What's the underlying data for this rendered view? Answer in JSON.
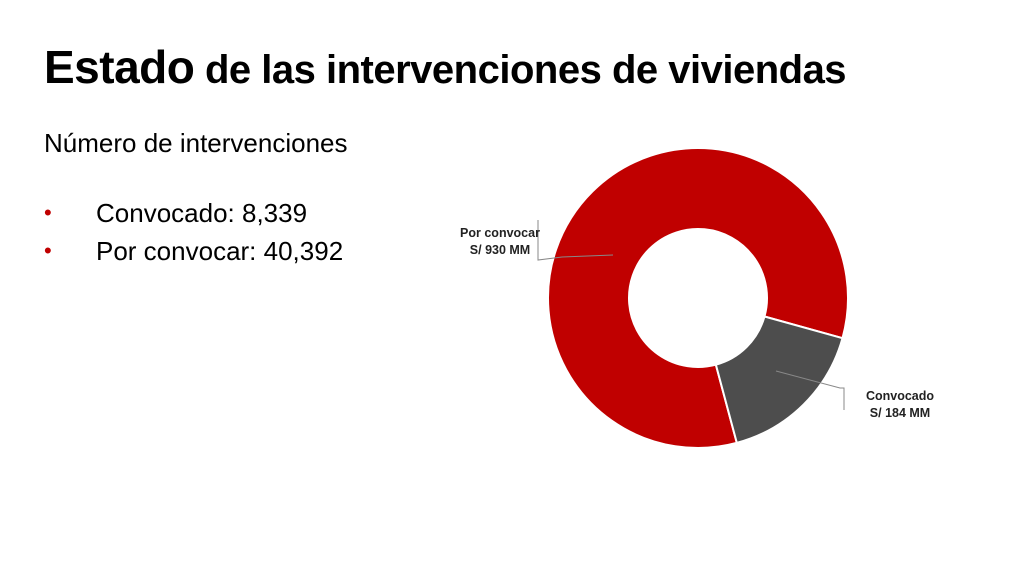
{
  "title": {
    "part1": "Estado",
    "part2": " de las intervenciones de viviendas"
  },
  "subtitle": "Número de intervenciones",
  "bullets": [
    {
      "label": "Convocado: 8,339"
    },
    {
      "label": "Por convocar: 40,392"
    }
  ],
  "colors": {
    "accent": "#c00000",
    "convocado": "#4d4d4d"
  },
  "chart_data": {
    "type": "pie",
    "variant": "donut",
    "categories": [
      "Por convocar",
      "Convocado"
    ],
    "values": [
      930,
      184
    ],
    "data_labels": [
      {
        "category": "Por convocar",
        "value": "S/ 930 MM"
      },
      {
        "category": "Convocado",
        "value": "S/ 184 MM"
      }
    ],
    "units": "S/ MM"
  }
}
